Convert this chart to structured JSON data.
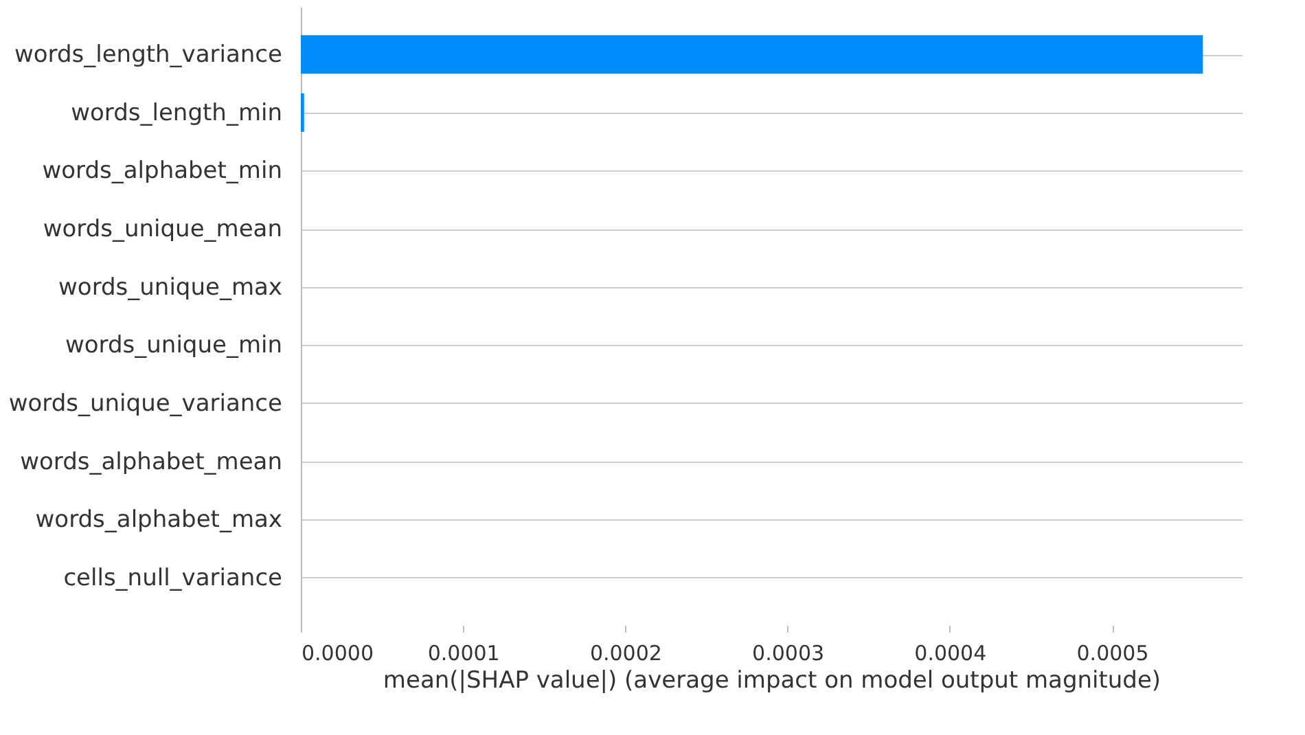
{
  "chart_data": {
    "type": "bar",
    "orientation": "horizontal",
    "categories": [
      "words_length_variance",
      "words_length_min",
      "words_alphabet_min",
      "words_unique_mean",
      "words_unique_max",
      "words_unique_min",
      "words_unique_variance",
      "words_alphabet_mean",
      "words_alphabet_max",
      "cells_null_variance"
    ],
    "values": [
      0.000556,
      2e-06,
      0,
      0,
      0,
      0,
      0,
      0,
      0,
      0
    ],
    "color": "#008bfb",
    "xlim": [
      0,
      0.00058
    ],
    "xticks": [
      {
        "value": 0,
        "label": "0.0000"
      },
      {
        "value": 0.0001,
        "label": "0.0001"
      },
      {
        "value": 0.0002,
        "label": "0.0002"
      },
      {
        "value": 0.0003,
        "label": "0.0003"
      },
      {
        "value": 0.0004,
        "label": "0.0004"
      },
      {
        "value": 0.0005,
        "label": "0.0005"
      }
    ],
    "xlabel": "mean(|SHAP value|) (average impact on model output magnitude)",
    "grid": "y"
  }
}
